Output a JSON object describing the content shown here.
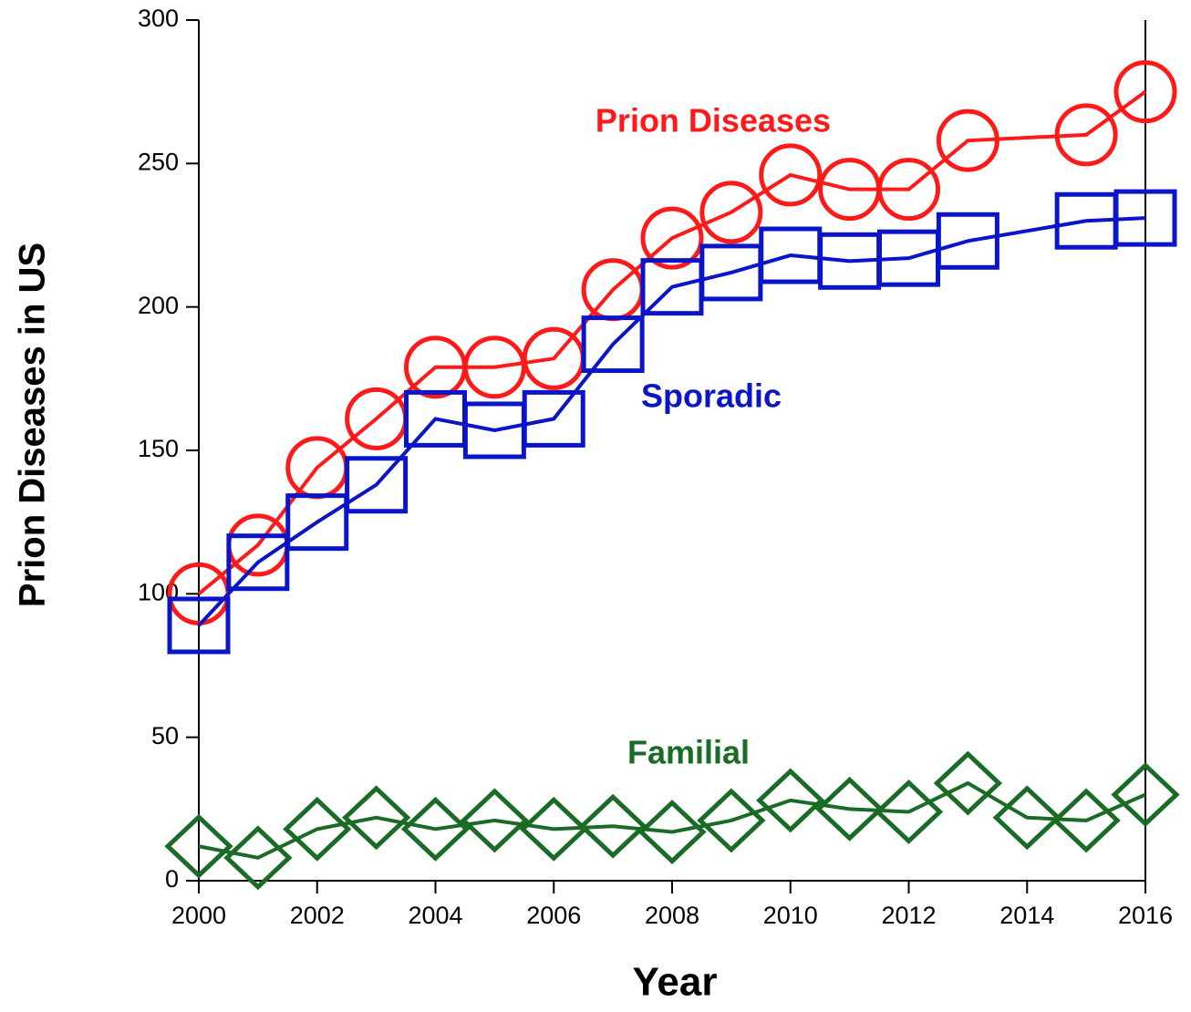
{
  "chart_data": {
    "type": "line",
    "x_label": "Year",
    "y_label": "Prion Diseases in US",
    "xlim": [
      2000,
      2016
    ],
    "xticks": [
      2000,
      2002,
      2004,
      2006,
      2008,
      2010,
      2012,
      2014,
      2016
    ],
    "ylim": [
      0,
      300
    ],
    "yticks": [
      0,
      50,
      100,
      150,
      200,
      250,
      300
    ],
    "series": [
      {
        "name": "Prion Diseases",
        "color": "#ff1a1a",
        "marker": "circle",
        "x": [
          2000,
          2001,
          2002,
          2003,
          2004,
          2005,
          2006,
          2007,
          2008,
          2009,
          2010,
          2011,
          2012,
          2013,
          2015,
          2016
        ],
        "values": [
          100,
          117,
          144,
          161,
          179,
          179,
          182,
          206,
          224,
          233,
          246,
          241,
          241,
          258,
          260,
          275
        ]
      },
      {
        "name": "Sporadic",
        "color": "#0a14c8",
        "marker": "square",
        "x": [
          2000,
          2001,
          2002,
          2003,
          2004,
          2005,
          2006,
          2007,
          2008,
          2009,
          2010,
          2011,
          2012,
          2013,
          2015,
          2016
        ],
        "values": [
          89,
          111,
          125,
          138,
          161,
          157,
          161,
          187,
          207,
          212,
          218,
          216,
          217,
          223,
          230,
          231
        ]
      },
      {
        "name": "Familial",
        "color": "#1a6b25",
        "marker": "diamond",
        "x": [
          2000,
          2001,
          2002,
          2003,
          2004,
          2005,
          2006,
          2007,
          2008,
          2009,
          2010,
          2011,
          2012,
          2013,
          2014,
          2015,
          2016
        ],
        "values": [
          12,
          8,
          18,
          22,
          18,
          21,
          18,
          19,
          17,
          21,
          28,
          25,
          24,
          34,
          22,
          21,
          30
        ]
      }
    ]
  }
}
